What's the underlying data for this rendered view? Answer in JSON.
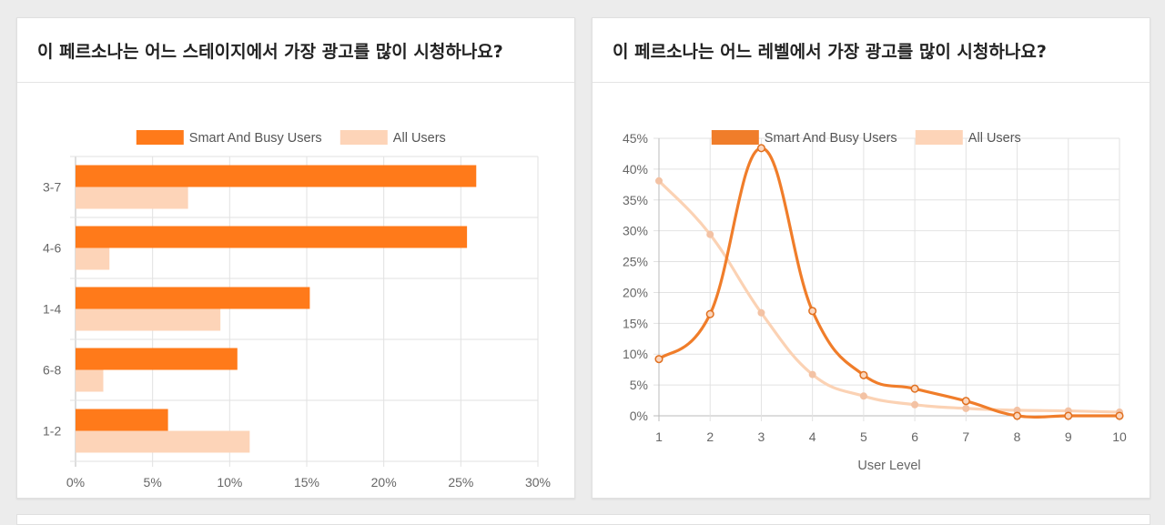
{
  "colors": {
    "primary": "#ff7a1a",
    "secondary": "#fdd4b8",
    "primary_line": "#f07d2a",
    "secondary_line": "#fbd2b4"
  },
  "chart_data": [
    {
      "type": "bar",
      "orientation": "horizontal",
      "title": "이 페르소나는 어느 스테이지에서 가장 광고를 많이 시청하나요?",
      "categories": [
        "3-7",
        "4-6",
        "1-4",
        "6-8",
        "1-2"
      ],
      "series": [
        {
          "name": "Smart And Busy Users",
          "values": [
            26.0,
            25.4,
            15.2,
            10.5,
            6.0
          ]
        },
        {
          "name": "All Users",
          "values": [
            7.3,
            2.2,
            9.4,
            1.8,
            11.3
          ]
        }
      ],
      "xlim": [
        0,
        30
      ],
      "xticks": [
        "0%",
        "5%",
        "10%",
        "15%",
        "20%",
        "25%",
        "30%"
      ],
      "legend": "top-center",
      "grid": true
    },
    {
      "type": "line",
      "title": "이 페르소나는 어느 레벨에서 가장 광고를 많이 시청하나요?",
      "x": [
        1,
        2,
        3,
        4,
        5,
        6,
        7,
        8,
        9,
        10
      ],
      "series": [
        {
          "name": "Smart And Busy Users",
          "values": [
            9.2,
            16.5,
            43.4,
            17.0,
            6.6,
            4.4,
            2.4,
            0.0,
            0.0,
            0.0
          ]
        },
        {
          "name": "All Users",
          "values": [
            38.1,
            29.4,
            16.7,
            6.7,
            3.2,
            1.8,
            1.2,
            0.9,
            0.8,
            0.6
          ]
        }
      ],
      "xlabel": "User Level",
      "ylim": [
        0,
        45
      ],
      "yticks": [
        "0%",
        "5%",
        "10%",
        "15%",
        "20%",
        "25%",
        "30%",
        "35%",
        "40%",
        "45%"
      ],
      "xticks": [
        "1",
        "2",
        "3",
        "4",
        "5",
        "6",
        "7",
        "8",
        "9",
        "10"
      ],
      "legend": "top-center",
      "grid": true
    }
  ]
}
